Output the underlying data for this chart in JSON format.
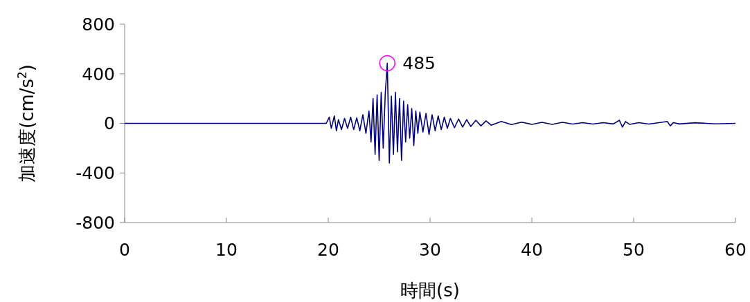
{
  "chart_data": {
    "type": "line",
    "xlabel": "時間(s)",
    "ylabel": "加速度(cm/s$^{2}$)",
    "x": [
      0,
      19.8,
      20.1,
      20.3,
      20.6,
      20.8,
      21.0,
      21.3,
      21.6,
      21.9,
      22.2,
      22.5,
      22.8,
      23.1,
      23.4,
      23.7,
      24.0,
      24.2,
      24.4,
      24.6,
      24.8,
      25.0,
      25.2,
      25.4,
      25.6,
      25.8,
      26.0,
      26.2,
      26.4,
      26.6,
      26.8,
      27.0,
      27.2,
      27.4,
      27.6,
      27.8,
      28.0,
      28.2,
      28.4,
      28.6,
      28.8,
      29.0,
      29.3,
      29.6,
      29.9,
      30.2,
      30.5,
      30.8,
      31.1,
      31.4,
      31.7,
      32.0,
      32.4,
      32.8,
      33.2,
      33.6,
      34.0,
      34.5,
      35.0,
      35.5,
      36.0,
      37,
      38,
      39,
      40,
      41,
      42,
      43,
      44,
      45,
      46,
      47,
      48,
      48.6,
      48.9,
      49.2,
      49.6,
      50.5,
      51.5,
      52.5,
      53.3,
      53.6,
      53.9,
      54.5,
      56,
      58,
      60
    ],
    "series": [
      {
        "color": "#000080",
        "values": [
          0,
          0,
          50,
          -40,
          60,
          -60,
          30,
          -50,
          40,
          -40,
          50,
          -50,
          45,
          -60,
          70,
          -80,
          100,
          -150,
          200,
          -250,
          230,
          -300,
          250,
          -200,
          240,
          485,
          -320,
          220,
          -250,
          250,
          -230,
          200,
          -300,
          180,
          -150,
          150,
          -120,
          120,
          -180,
          100,
          -80,
          90,
          -70,
          80,
          -90,
          70,
          -60,
          60,
          -50,
          50,
          -40,
          40,
          -35,
          35,
          -30,
          30,
          -25,
          25,
          -20,
          20,
          -15,
          15,
          -10,
          10,
          -8,
          8,
          -8,
          8,
          -6,
          6,
          -6,
          6,
          -5,
          25,
          -30,
          15,
          -8,
          6,
          -6,
          6,
          15,
          -20,
          6,
          -5,
          5,
          -4,
          0
        ]
      }
    ],
    "xlim": [
      0,
      60
    ],
    "xticks": [
      0,
      10,
      20,
      30,
      40,
      50,
      60
    ],
    "ylim": [
      -800,
      800
    ],
    "yticks": [
      -800,
      -400,
      0,
      400,
      800
    ],
    "grid": false,
    "marker": "none",
    "line_style": "solid",
    "annotations": [
      {
        "text": "485",
        "x": 25.8,
        "y": 485
      }
    ]
  }
}
